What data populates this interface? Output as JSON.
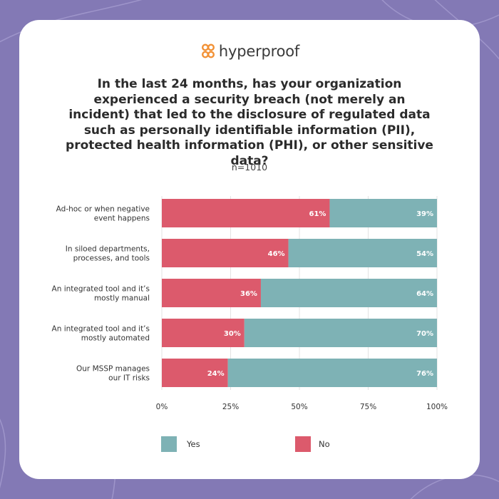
{
  "brand": {
    "name": "hyperproof",
    "accent_color": "#f29135",
    "background_color": "#8379b5"
  },
  "chart_data": {
    "type": "bar",
    "orientation": "horizontal",
    "stacked": true,
    "title": "In the last 24 months, has your organization experienced a security breach (not merely an incident) that led to the disclosure of regulated data such as personally identifiable information (PII), protected health information (PHI), or other sensitive data?",
    "subtitle": "n=1010",
    "categories": [
      [
        "Ad-hoc or when negative",
        "event happens"
      ],
      [
        "In siloed departments,",
        "processes, and tools"
      ],
      [
        "An integrated tool and it’s",
        "mostly manual"
      ],
      [
        "An integrated tool and it’s",
        "mostly automated"
      ],
      [
        "Our MSSP manages",
        "our IT risks"
      ]
    ],
    "series": [
      {
        "name": "No",
        "color": "#dc5a6c",
        "values": [
          61,
          46,
          36,
          30,
          24
        ],
        "labels": [
          "61%",
          "46%",
          "36%",
          "30%",
          "24%"
        ]
      },
      {
        "name": "Yes",
        "color": "#7eb2b5",
        "values": [
          39,
          54,
          64,
          70,
          76
        ],
        "labels": [
          "39%",
          "54%",
          "64%",
          "70%",
          "76%"
        ]
      }
    ],
    "xlim": [
      0,
      100
    ],
    "xticks": [
      0,
      25,
      50,
      75,
      100
    ],
    "xtick_labels": [
      "0%",
      "25%",
      "50%",
      "75%",
      "100%"
    ],
    "grid": true,
    "legend": [
      {
        "name": "Yes",
        "color": "#7eb2b5"
      },
      {
        "name": "No",
        "color": "#dc5a6c"
      }
    ],
    "legend_position": "bottom"
  }
}
